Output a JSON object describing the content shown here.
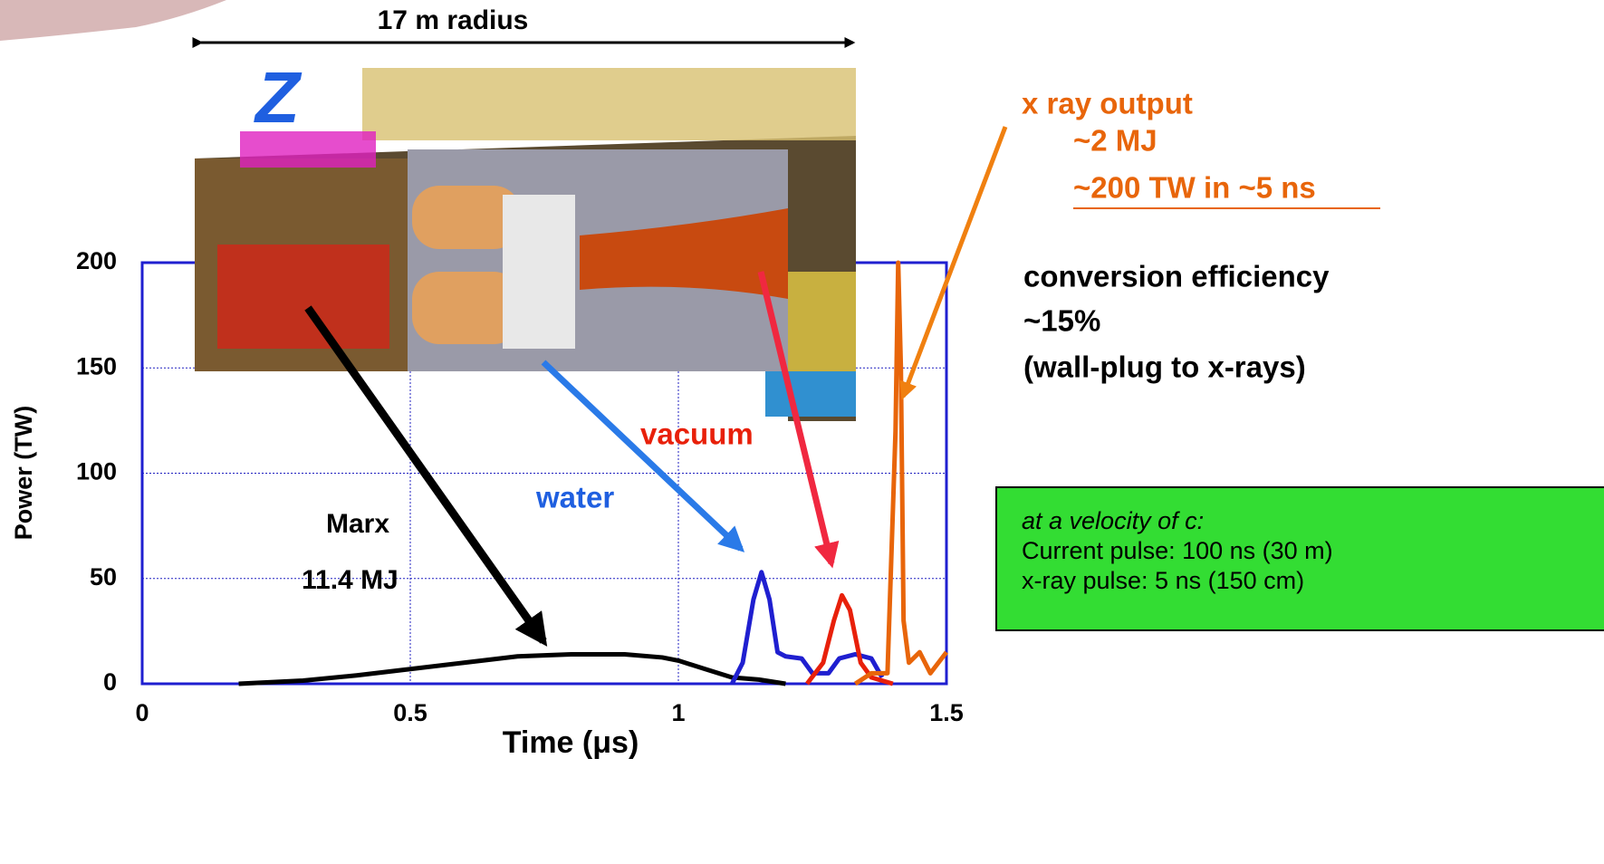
{
  "chart_data": {
    "type": "line",
    "x_label": "Time (μs)",
    "y_label": "Power (TW)",
    "xlim": [
      0,
      1.5
    ],
    "ylim": [
      0,
      200
    ],
    "xticks": [
      0,
      0.5,
      1,
      1.5
    ],
    "yticks": [
      0,
      50,
      100,
      150,
      200
    ],
    "grid": true,
    "series": [
      {
        "name": "Marx",
        "color": "#000000",
        "x": [
          0.18,
          0.3,
          0.4,
          0.5,
          0.6,
          0.7,
          0.8,
          0.9,
          0.97,
          1.0,
          1.05,
          1.1,
          1.15,
          1.2
        ],
        "values": [
          0,
          1.5,
          4,
          7,
          10,
          13,
          14,
          14,
          12.5,
          11,
          7,
          3,
          2,
          0
        ]
      },
      {
        "name": "water",
        "color": "#1f1fd0",
        "x": [
          1.1,
          1.12,
          1.14,
          1.155,
          1.17,
          1.185,
          1.2,
          1.23,
          1.25,
          1.28,
          1.3,
          1.33,
          1.36,
          1.38
        ],
        "values": [
          0,
          10,
          40,
          53,
          40,
          15,
          13,
          12,
          5,
          5,
          12,
          14,
          12,
          3
        ]
      },
      {
        "name": "vacuum",
        "color": "#e8200a",
        "x": [
          1.24,
          1.27,
          1.29,
          1.305,
          1.32,
          1.34,
          1.36,
          1.4
        ],
        "values": [
          0,
          10,
          30,
          42,
          35,
          10,
          3,
          0
        ]
      },
      {
        "name": "x ray output",
        "color": "#e8650a",
        "x": [
          1.33,
          1.36,
          1.39,
          1.405,
          1.41,
          1.415,
          1.42,
          1.43,
          1.45,
          1.47,
          1.5
        ],
        "values": [
          0,
          5,
          5,
          120,
          200,
          150,
          30,
          10,
          15,
          5,
          15
        ]
      }
    ],
    "annotations": [
      "17 m radius",
      "Z",
      "~2 MJ",
      "~200 TW in ~5 ns",
      "conversion efficiency",
      "~15%",
      "(wall-plug to x-rays)",
      "11.4 MJ"
    ],
    "note_box": [
      "at a velocity of c:",
      "Current pulse: 100 ns (30 m)",
      "x-ray pulse: 5 ns (150 cm)"
    ]
  }
}
